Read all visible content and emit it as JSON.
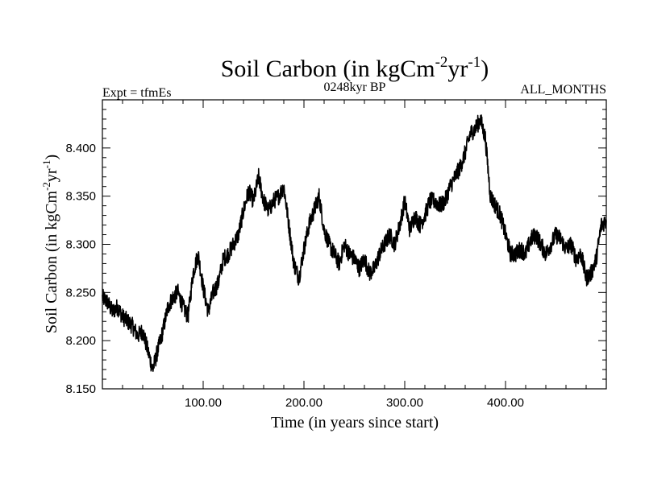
{
  "chart_data": {
    "type": "line",
    "title": "Soil Carbon (in kgCm",
    "title_sup1": "-2",
    "title_mid": "yr",
    "title_sup2": "-1",
    "title_end": ")",
    "subtitle_left": "Expt = tfmEs",
    "subtitle_center": "0248kyr BP",
    "subtitle_right": "ALL_MONTHS",
    "xlabel": "Time (in years since start)",
    "ylabel": "Soil Carbon (in kgCm",
    "ylabel_sup1": "-2",
    "ylabel_mid": "yr",
    "ylabel_sup2": "-1",
    "ylabel_end": ")",
    "xlim": [
      0,
      500
    ],
    "ylim": [
      8.15,
      8.45
    ],
    "x_ticks": [
      100,
      200,
      300,
      400
    ],
    "x_tick_labels": [
      "100.00",
      "200.00",
      "300.00",
      "400.00"
    ],
    "y_ticks": [
      8.15,
      8.2,
      8.25,
      8.3,
      8.35,
      8.4
    ],
    "y_tick_labels": [
      "8.150",
      "8.200",
      "8.250",
      "8.300",
      "8.350",
      "8.400"
    ],
    "series": [
      {
        "name": "Soil Carbon",
        "color": "#000000",
        "x": [
          0,
          5,
          10,
          15,
          20,
          25,
          30,
          35,
          40,
          45,
          50,
          55,
          60,
          65,
          70,
          75,
          80,
          85,
          90,
          95,
          100,
          105,
          110,
          115,
          120,
          125,
          130,
          135,
          140,
          145,
          150,
          155,
          160,
          165,
          170,
          175,
          180,
          185,
          190,
          195,
          200,
          205,
          210,
          215,
          220,
          225,
          230,
          235,
          240,
          245,
          250,
          255,
          260,
          265,
          270,
          275,
          280,
          285,
          290,
          295,
          300,
          305,
          310,
          315,
          320,
          325,
          330,
          335,
          340,
          345,
          350,
          355,
          360,
          365,
          370,
          375,
          380,
          385,
          390,
          395,
          400,
          405,
          410,
          415,
          420,
          425,
          430,
          435,
          440,
          445,
          450,
          455,
          460,
          465,
          470,
          475,
          480,
          485,
          490,
          495,
          500
        ],
        "y": [
          8.245,
          8.24,
          8.23,
          8.235,
          8.225,
          8.22,
          8.215,
          8.205,
          8.21,
          8.19,
          8.17,
          8.19,
          8.21,
          8.235,
          8.245,
          8.25,
          8.235,
          8.225,
          8.27,
          8.29,
          8.255,
          8.23,
          8.25,
          8.26,
          8.285,
          8.29,
          8.3,
          8.31,
          8.335,
          8.355,
          8.345,
          8.37,
          8.345,
          8.335,
          8.345,
          8.35,
          8.36,
          8.32,
          8.28,
          8.265,
          8.295,
          8.32,
          8.335,
          8.35,
          8.315,
          8.3,
          8.29,
          8.28,
          8.3,
          8.29,
          8.285,
          8.275,
          8.285,
          8.27,
          8.275,
          8.29,
          8.3,
          8.31,
          8.3,
          8.32,
          8.345,
          8.315,
          8.33,
          8.32,
          8.33,
          8.345,
          8.345,
          8.34,
          8.345,
          8.36,
          8.37,
          8.38,
          8.395,
          8.415,
          8.42,
          8.43,
          8.41,
          8.35,
          8.34,
          8.33,
          8.31,
          8.29,
          8.29,
          8.295,
          8.29,
          8.305,
          8.31,
          8.3,
          8.29,
          8.3,
          8.31,
          8.305,
          8.295,
          8.3,
          8.285,
          8.29,
          8.265,
          8.27,
          8.285,
          8.32,
          8.325
        ]
      }
    ]
  }
}
